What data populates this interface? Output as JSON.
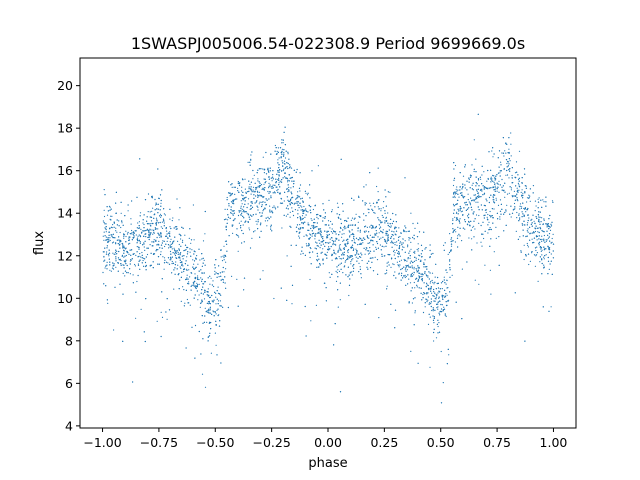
{
  "chart_data": {
    "type": "scatter",
    "title": "1SWASPJ005006.54-022308.9 Period 9699669.0s",
    "xlabel": "phase",
    "ylabel": "flux",
    "xlim": [
      -1.1,
      1.1
    ],
    "ylim": [
      3.9,
      21.3
    ],
    "xticks": [
      -1.0,
      -0.75,
      -0.5,
      -0.25,
      0.0,
      0.25,
      0.5,
      0.75,
      1.0
    ],
    "xtick_labels": [
      "−1.00",
      "−0.75",
      "−0.50",
      "−0.25",
      "0.00",
      "0.25",
      "0.50",
      "0.75",
      "1.00"
    ],
    "yticks": [
      4,
      6,
      8,
      10,
      12,
      14,
      16,
      18,
      20
    ],
    "ytick_labels": [
      "4",
      "6",
      "8",
      "10",
      "12",
      "14",
      "16",
      "18",
      "20"
    ],
    "grid": false,
    "marker_color": "#1f77b4",
    "series": [
      {
        "phase_range": [
          -1.0,
          1.0
        ],
        "trend_points": [
          {
            "phase": -1.0,
            "flux": 12.9
          },
          {
            "phase": -0.95,
            "flux": 12.5
          },
          {
            "phase": -0.9,
            "flux": 12.3
          },
          {
            "phase": -0.85,
            "flux": 12.6
          },
          {
            "phase": -0.8,
            "flux": 13.0
          },
          {
            "phase": -0.75,
            "flux": 13.3
          },
          {
            "phase": -0.7,
            "flux": 12.6
          },
          {
            "phase": -0.65,
            "flux": 11.9
          },
          {
            "phase": -0.6,
            "flux": 11.4
          },
          {
            "phase": -0.55,
            "flux": 10.4
          },
          {
            "phase": -0.52,
            "flux": 9.6
          },
          {
            "phase": -0.47,
            "flux": 10.6
          },
          {
            "phase": -0.44,
            "flux": 14.2
          },
          {
            "phase": -0.38,
            "flux": 14.4
          },
          {
            "phase": -0.3,
            "flux": 14.6
          },
          {
            "phase": -0.25,
            "flux": 15.1
          },
          {
            "phase": -0.2,
            "flux": 16.3
          },
          {
            "phase": -0.17,
            "flux": 14.8
          },
          {
            "phase": -0.1,
            "flux": 13.6
          },
          {
            "phase": -0.05,
            "flux": 12.8
          },
          {
            "phase": 0.0,
            "flux": 12.9
          }
        ]
      }
    ]
  }
}
